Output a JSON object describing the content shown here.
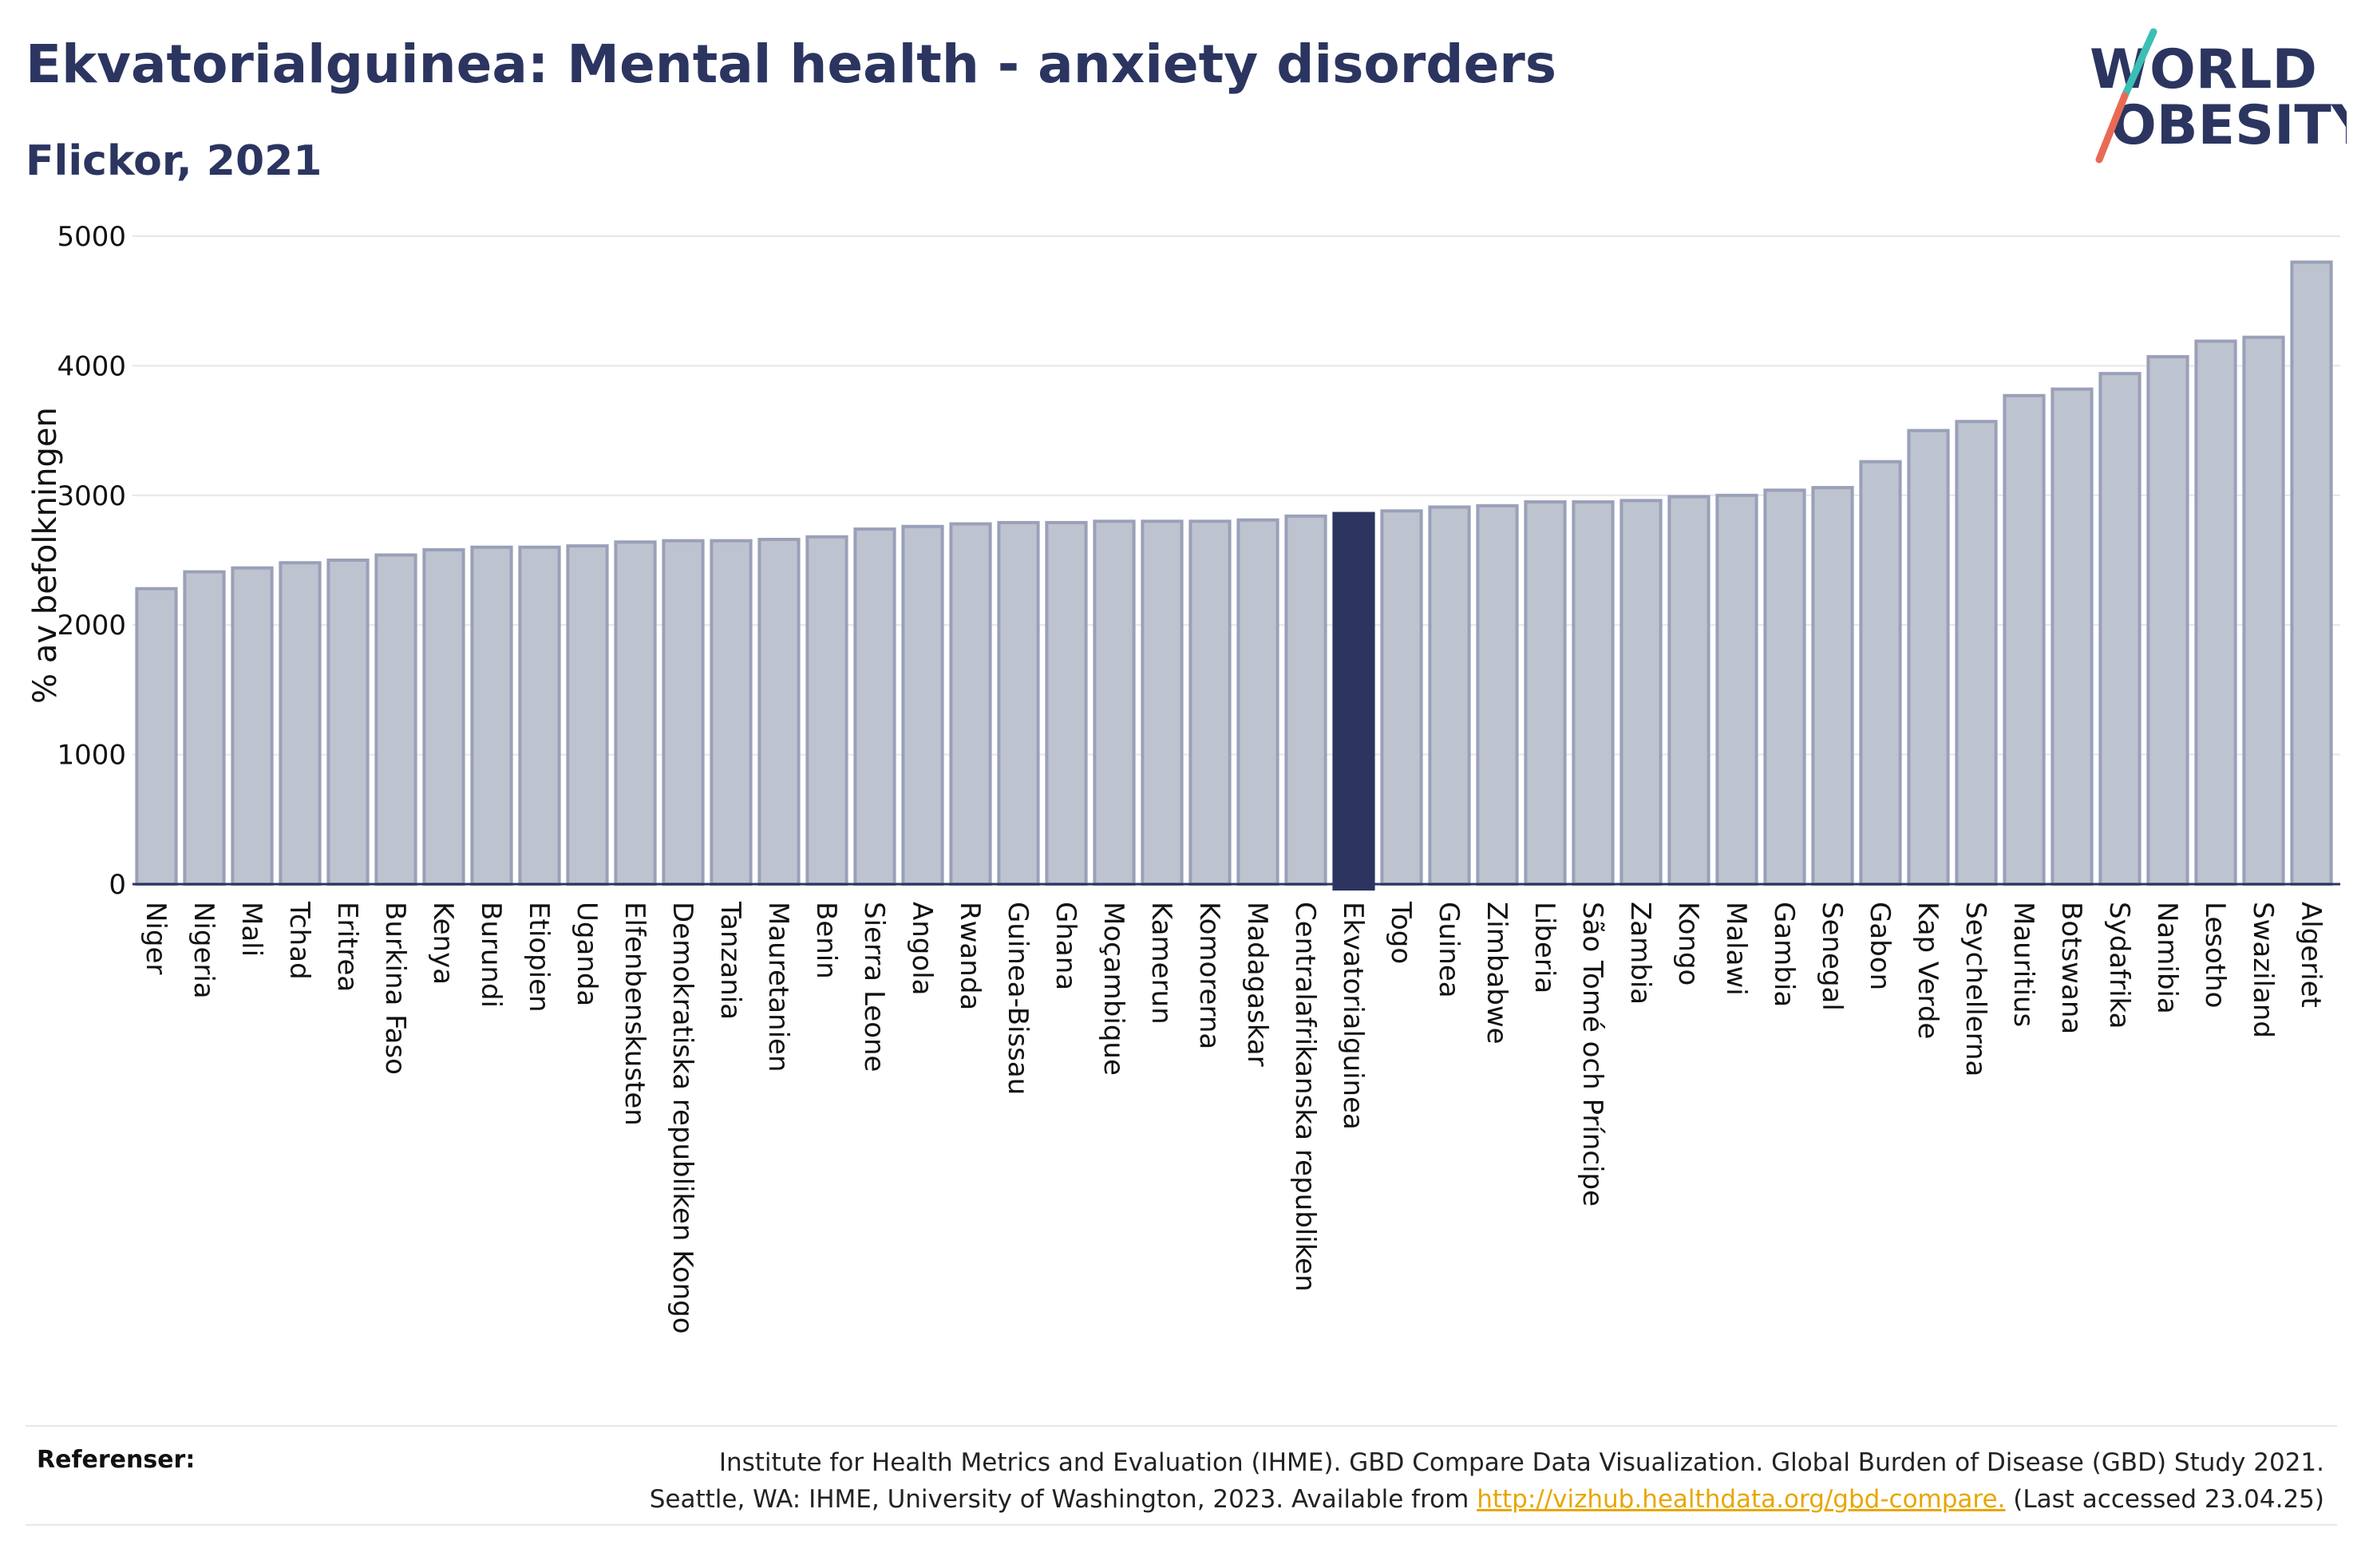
{
  "title": "Ekvatorialguinea: Mental health - anxiety disorders",
  "subtitle": "Flickor, 2021",
  "logo": {
    "line1": "WORLD",
    "line2": "OBESITY"
  },
  "references": {
    "label": "Referenser:",
    "line1": "Institute for Health Metrics and Evaluation (IHME). GBD Compare Data Visualization. Global Burden of Disease (GBD) Study 2021.",
    "line2_pre": "Seattle, WA: IHME, University of Washington, 2023. Available from ",
    "link": "http://vizhub.healthdata.org/gbd-compare.",
    "line2_post": " (Last accessed 23.04.25)"
  },
  "colors": {
    "bar": "#bec3d0",
    "bar_edge": "#9aa0b8",
    "highlight": "#2b3560",
    "title": "#2b3560"
  },
  "chart_data": {
    "type": "bar",
    "ylabel": "% av befolkningen",
    "ylim": [
      0,
      5000
    ],
    "yticks": [
      0,
      1000,
      2000,
      3000,
      4000,
      5000
    ],
    "grid": true,
    "highlight": "Ekvatorialguinea",
    "categories": [
      "Niger",
      "Nigeria",
      "Mali",
      "Tchad",
      "Eritrea",
      "Burkina Faso",
      "Kenya",
      "Burundi",
      "Etiopien",
      "Uganda",
      "Elfenbenskusten",
      "Demokratiska republiken Kongo",
      "Tanzania",
      "Mauretanien",
      "Benin",
      "Sierra Leone",
      "Angola",
      "Rwanda",
      "Guinea-Bissau",
      "Ghana",
      "Moçambique",
      "Kamerun",
      "Komorerna",
      "Madagaskar",
      "Centralafrikanska republiken",
      "Ekvatorialguinea",
      "Togo",
      "Guinea",
      "Zimbabwe",
      "Liberia",
      "São Tomé och Príncipe",
      "Zambia",
      "Kongo",
      "Malawi",
      "Gambia",
      "Senegal",
      "Gabon",
      "Kap Verde",
      "Seychellerna",
      "Mauritius",
      "Botswana",
      "Sydafrika",
      "Namibia",
      "Lesotho",
      "Swaziland",
      "Algeriet"
    ],
    "values": [
      2280,
      2410,
      2440,
      2480,
      2500,
      2540,
      2580,
      2600,
      2600,
      2610,
      2640,
      2650,
      2650,
      2660,
      2680,
      2740,
      2760,
      2780,
      2790,
      2790,
      2800,
      2800,
      2800,
      2810,
      2840,
      2860,
      2880,
      2910,
      2920,
      2950,
      2950,
      2960,
      2990,
      3000,
      3040,
      3060,
      3260,
      3500,
      3570,
      3770,
      3820,
      3940,
      4070,
      4190,
      4220,
      4800
    ]
  }
}
